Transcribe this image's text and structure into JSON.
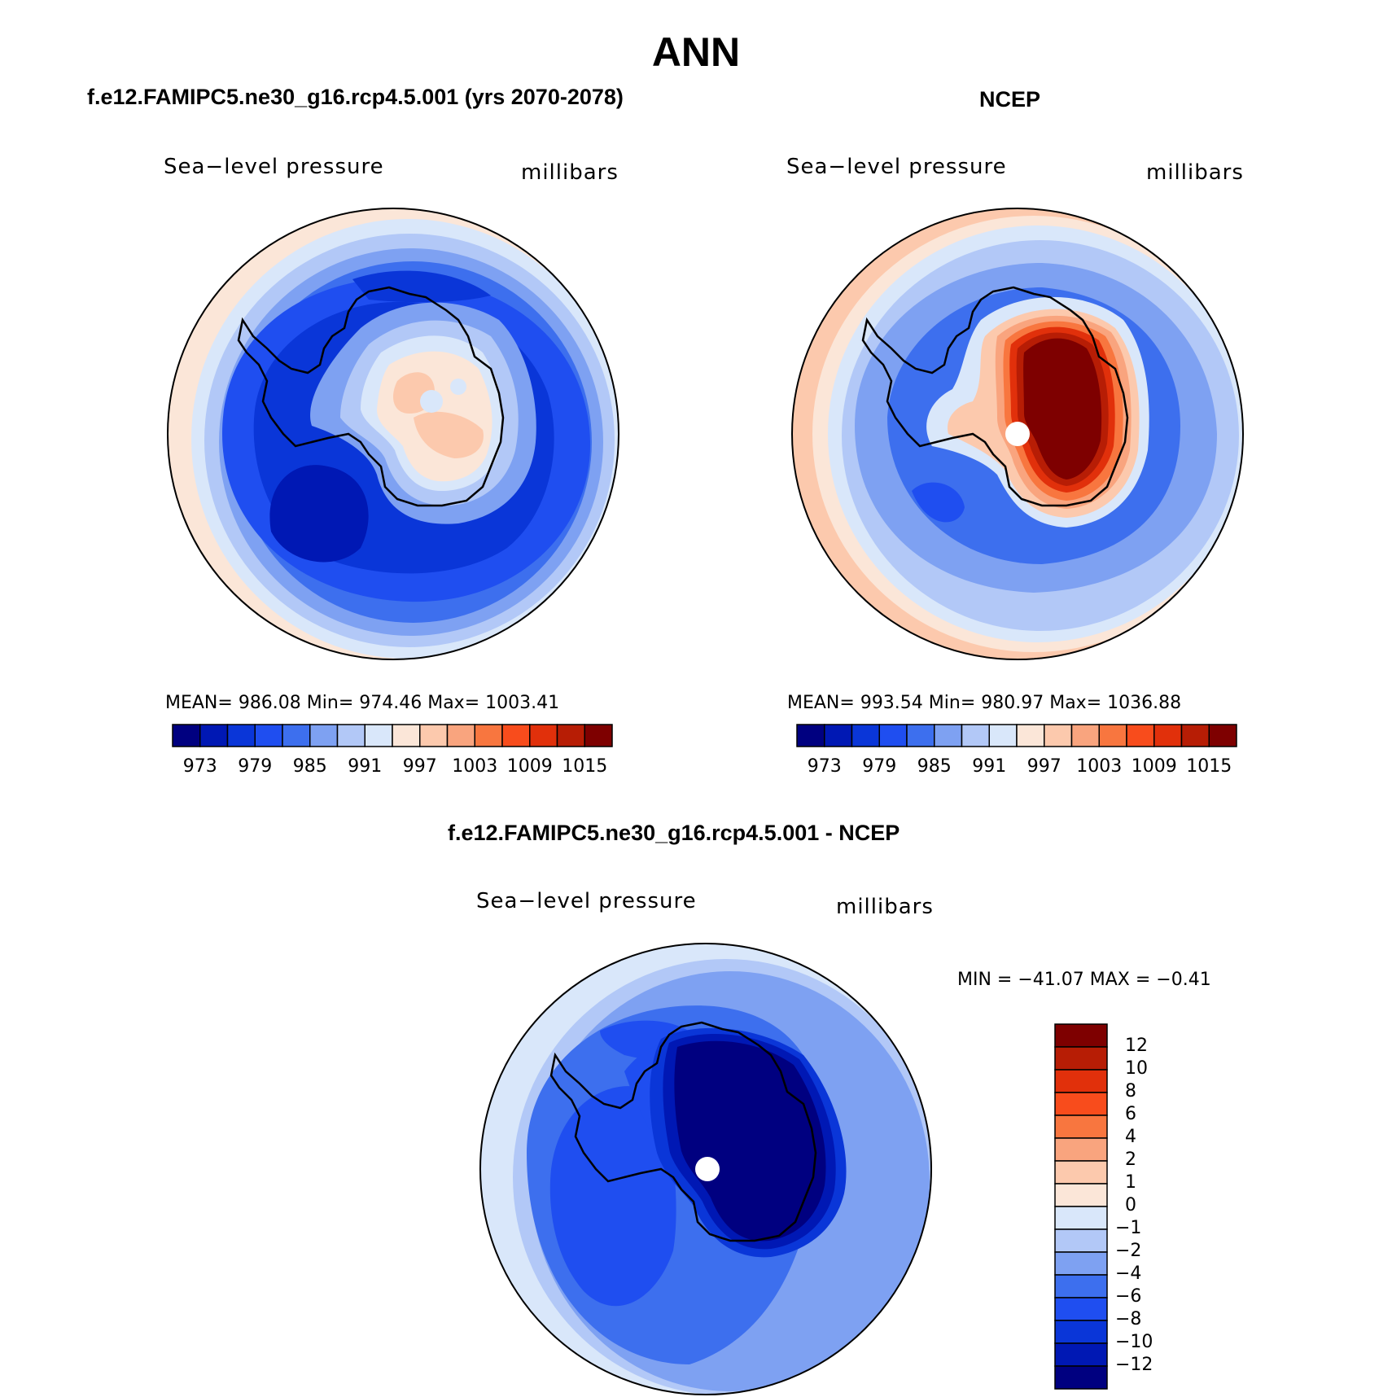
{
  "title": "ANN",
  "panels": [
    {
      "title": "f.e12.FAMIPC5.ne30_g16.rcp4.5.001 (yrs 2070-2078)",
      "left_label": "Sea−level pressure",
      "right_label": "millibars",
      "stats": "MEAN=  986.08    Min=  974.46    Max=  1003.41"
    },
    {
      "title": "NCEP",
      "left_label": "Sea−level pressure",
      "right_label": "millibars",
      "stats": "MEAN=  993.54    Min=  980.97    Max=  1036.88"
    },
    {
      "title": "f.e12.FAMIPC5.ne30_g16.rcp4.5.001 - NCEP",
      "left_label": "Sea−level pressure",
      "right_label": "millibars",
      "stats": "MIN  =  −41.07  MAX  =    −0.41"
    }
  ],
  "abs_colorbar": {
    "labels": [
      "973",
      "979",
      "985",
      "991",
      "997",
      "1003",
      "1009",
      "1015"
    ],
    "colors": [
      "#000080",
      "#0018b4",
      "#0a36d8",
      "#1f4ef0",
      "#3d6fee",
      "#7ea1f2",
      "#b2c8f7",
      "#d9e7fa",
      "#fbe6d8",
      "#fcc9ad",
      "#f9a47e",
      "#f8763f",
      "#f84c1c",
      "#e1300b",
      "#b71d05",
      "#7e0000"
    ]
  },
  "diff_colorbar": {
    "labels": [
      "12",
      "10",
      "8",
      "6",
      "4",
      "2",
      "1",
      "0",
      "−1",
      "−2",
      "−4",
      "−6",
      "−8",
      "−10",
      "−12"
    ],
    "colors": [
      "#7e0000",
      "#b71d05",
      "#e1300b",
      "#f84c1c",
      "#f8763f",
      "#f9a47e",
      "#fcc9ad",
      "#fbe6d8",
      "#d9e7fa",
      "#b2c8f7",
      "#7ea1f2",
      "#3d6fee",
      "#1f4ef0",
      "#0a36d8",
      "#0018b4",
      "#000080"
    ]
  }
}
